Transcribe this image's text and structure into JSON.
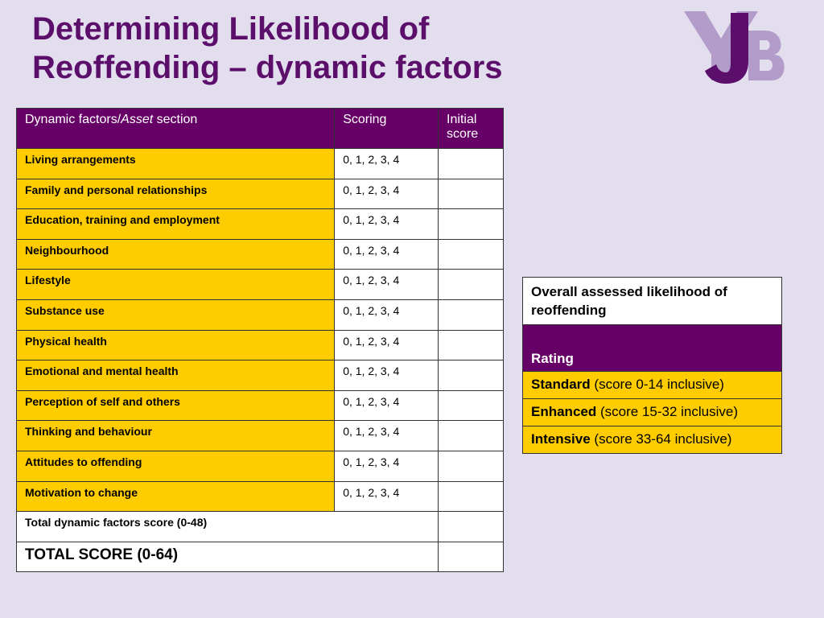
{
  "title": {
    "line1": "Determining Likelihood of",
    "line2": "Reoffending – dynamic factors"
  },
  "logo": {
    "text": "YJB",
    "colors": {
      "primary": "#5c0e6b",
      "secondary": "#b39cc9"
    }
  },
  "main_table": {
    "headers": {
      "factor_prefix": "Dynamic factors/",
      "factor_italic": "Asset",
      "factor_suffix": " section",
      "scoring": "Scoring",
      "initial": "Initial score"
    },
    "rows": [
      {
        "factor": "Living arrangements",
        "scoring": "0, 1, 2, 3, 4"
      },
      {
        "factor": "Family and personal relationships",
        "scoring": "0, 1, 2, 3, 4"
      },
      {
        "factor": "Education, training and employment",
        "scoring": "0, 1, 2, 3, 4"
      },
      {
        "factor": "Neighbourhood",
        "scoring": "0, 1, 2, 3, 4"
      },
      {
        "factor": "Lifestyle",
        "scoring": "0, 1, 2, 3, 4"
      },
      {
        "factor": "Substance use",
        "scoring": "0, 1, 2, 3, 4"
      },
      {
        "factor": "Physical health",
        "scoring": "0, 1, 2, 3, 4"
      },
      {
        "factor": "Emotional and mental health",
        "scoring": "0, 1, 2, 3, 4"
      },
      {
        "factor": "Perception of self and others",
        "scoring": "0, 1, 2, 3, 4"
      },
      {
        "factor": "Thinking and behaviour",
        "scoring": "0, 1, 2, 3, 4"
      },
      {
        "factor": "Attitudes to offending",
        "scoring": "0, 1, 2, 3, 4"
      },
      {
        "factor": "Motivation to change",
        "scoring": "0, 1, 2, 3, 4"
      }
    ],
    "total_dynamic": "Total dynamic factors score (0-48)",
    "total_score": "TOTAL SCORE (0-64)"
  },
  "rating_table": {
    "overall": "Overall assessed likelihood of reoffending",
    "rating_header": "Rating",
    "levels": [
      {
        "name": "Standard",
        "range": " (score 0-14 inclusive)"
      },
      {
        "name": "Enhanced",
        "range": " (score 15-32 inclusive)"
      },
      {
        "name": "Intensive",
        "range": " (score 33-64 inclusive)"
      }
    ]
  },
  "colors": {
    "background": "#e2deee",
    "title": "#5c0e6b",
    "header": "#660066",
    "highlight": "#ffcc00"
  }
}
